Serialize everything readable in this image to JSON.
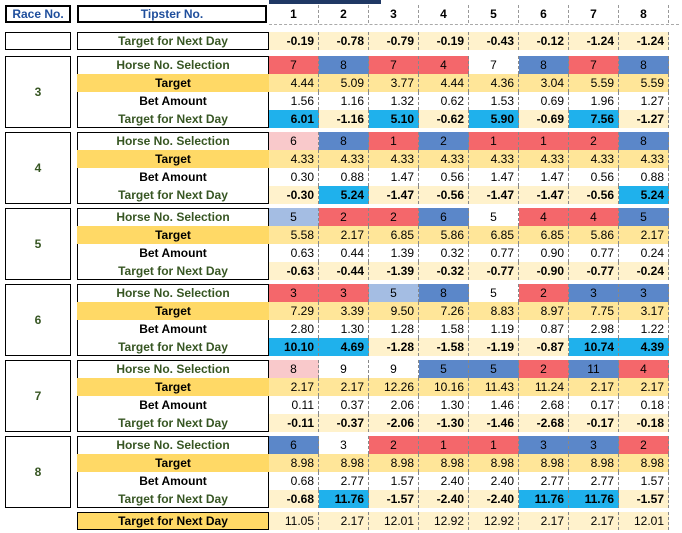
{
  "header": {
    "race_label": "Race No.",
    "tipster_label": "Tipster No.",
    "tipsters": [
      "1",
      "2",
      "3",
      "4",
      "5",
      "6",
      "7",
      "8"
    ]
  },
  "labels": {
    "selection": "Horse No. Selection",
    "target": "Target",
    "bet": "Bet Amount",
    "next": "Target for Next Day"
  },
  "colors": {
    "red": "#f4676b",
    "blue": "#5b87c9",
    "pink": "#f9c9cb",
    "lightblue": "#a4bde3",
    "white": "#ffffff",
    "cyan": "#1fb1ec",
    "cream": "#fff2cc",
    "yellow": "#ffd966"
  },
  "top_partial": {
    "next": [
      "-0.19",
      "-0.78",
      "-0.79",
      "-0.19",
      "-0.43",
      "-0.12",
      "-1.24",
      "-1.24"
    ]
  },
  "races": [
    {
      "race": "3",
      "selection": [
        "7",
        "8",
        "7",
        "4",
        "7",
        "8",
        "7",
        "8"
      ],
      "selection_colors": [
        "red",
        "blue",
        "red",
        "red",
        "white",
        "blue",
        "red",
        "blue"
      ],
      "target": [
        "4.44",
        "5.09",
        "3.77",
        "4.44",
        "4.36",
        "3.04",
        "5.59",
        "5.59"
      ],
      "bet": [
        "1.56",
        "1.16",
        "1.32",
        "0.62",
        "1.53",
        "0.69",
        "1.96",
        "1.27"
      ],
      "next": [
        "6.01",
        "-1.16",
        "5.10",
        "-0.62",
        "5.90",
        "-0.69",
        "7.56",
        "-1.27"
      ],
      "next_highlight": [
        true,
        false,
        true,
        false,
        true,
        false,
        true,
        false
      ]
    },
    {
      "race": "4",
      "selection": [
        "6",
        "8",
        "1",
        "2",
        "1",
        "1",
        "2",
        "8"
      ],
      "selection_colors": [
        "pink",
        "blue",
        "red",
        "blue",
        "red",
        "red",
        "red",
        "blue"
      ],
      "target": [
        "4.33",
        "4.33",
        "4.33",
        "4.33",
        "4.33",
        "4.33",
        "4.33",
        "4.33"
      ],
      "bet": [
        "0.30",
        "0.88",
        "1.47",
        "0.56",
        "1.47",
        "1.47",
        "0.56",
        "0.88"
      ],
      "next": [
        "-0.30",
        "5.24",
        "-1.47",
        "-0.56",
        "-1.47",
        "-1.47",
        "-0.56",
        "5.24"
      ],
      "next_highlight": [
        false,
        true,
        false,
        false,
        false,
        false,
        false,
        true
      ]
    },
    {
      "race": "5",
      "selection": [
        "5",
        "2",
        "2",
        "6",
        "5",
        "4",
        "4",
        "5"
      ],
      "selection_colors": [
        "lightblue",
        "red",
        "red",
        "blue",
        "white",
        "red",
        "red",
        "blue"
      ],
      "target": [
        "5.58",
        "2.17",
        "6.85",
        "5.86",
        "6.85",
        "6.85",
        "5.86",
        "2.17"
      ],
      "bet": [
        "0.63",
        "0.44",
        "1.39",
        "0.32",
        "0.77",
        "0.90",
        "0.77",
        "0.24"
      ],
      "next": [
        "-0.63",
        "-0.44",
        "-1.39",
        "-0.32",
        "-0.77",
        "-0.90",
        "-0.77",
        "-0.24"
      ],
      "next_highlight": [
        false,
        false,
        false,
        false,
        false,
        false,
        false,
        false
      ]
    },
    {
      "race": "6",
      "selection": [
        "3",
        "3",
        "5",
        "8",
        "5",
        "2",
        "3",
        "3"
      ],
      "selection_colors": [
        "red",
        "red",
        "lightblue",
        "blue",
        "white",
        "red",
        "blue",
        "blue"
      ],
      "target": [
        "7.29",
        "3.39",
        "9.50",
        "7.26",
        "8.83",
        "8.97",
        "7.75",
        "3.17"
      ],
      "bet": [
        "2.80",
        "1.30",
        "1.28",
        "1.58",
        "1.19",
        "0.87",
        "2.98",
        "1.22"
      ],
      "next": [
        "10.10",
        "4.69",
        "-1.28",
        "-1.58",
        "-1.19",
        "-0.87",
        "10.74",
        "4.39"
      ],
      "next_highlight": [
        true,
        true,
        false,
        false,
        false,
        false,
        true,
        true
      ]
    },
    {
      "race": "7",
      "selection": [
        "8",
        "9",
        "9",
        "5",
        "5",
        "2",
        "11",
        "4"
      ],
      "selection_colors": [
        "pink",
        "white",
        "white",
        "blue",
        "blue",
        "red",
        "blue",
        "red"
      ],
      "target": [
        "2.17",
        "2.17",
        "12.26",
        "10.16",
        "11.43",
        "11.24",
        "2.17",
        "2.17"
      ],
      "bet": [
        "0.11",
        "0.37",
        "2.06",
        "1.30",
        "1.46",
        "2.68",
        "0.17",
        "0.18"
      ],
      "next": [
        "-0.11",
        "-0.37",
        "-2.06",
        "-1.30",
        "-1.46",
        "-2.68",
        "-0.17",
        "-0.18"
      ],
      "next_highlight": [
        false,
        false,
        false,
        false,
        false,
        false,
        false,
        false
      ]
    },
    {
      "race": "8",
      "selection": [
        "6",
        "3",
        "2",
        "1",
        "1",
        "3",
        "3",
        "2"
      ],
      "selection_colors": [
        "blue",
        "white",
        "red",
        "red",
        "red",
        "blue",
        "blue",
        "red"
      ],
      "target": [
        "8.98",
        "8.98",
        "8.98",
        "8.98",
        "8.98",
        "8.98",
        "8.98",
        "8.98"
      ],
      "bet": [
        "0.68",
        "2.77",
        "1.57",
        "2.40",
        "2.40",
        "2.77",
        "2.77",
        "1.57"
      ],
      "next": [
        "-0.68",
        "11.76",
        "-1.57",
        "-2.40",
        "-2.40",
        "11.76",
        "11.76",
        "-1.57"
      ],
      "next_highlight": [
        false,
        true,
        false,
        false,
        false,
        true,
        true,
        false
      ]
    }
  ],
  "final": {
    "label": "Target for Next Day",
    "values": [
      "11.05",
      "2.17",
      "12.01",
      "12.92",
      "12.92",
      "2.17",
      "2.17",
      "12.01"
    ]
  }
}
